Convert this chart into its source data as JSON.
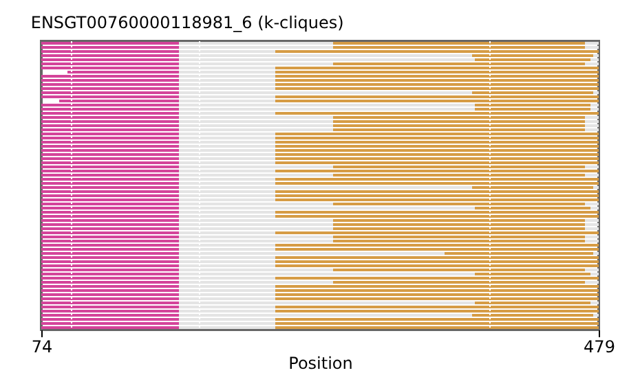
{
  "chart_data": {
    "type": "bar",
    "orientation": "horizontal",
    "title": "ENSGT00760000118981_6 (k-cliques)",
    "xlabel": "Position",
    "xlim": [
      74,
      479
    ],
    "xticks": [
      74,
      479
    ],
    "tick_labels": "x",
    "categories": [
      null,
      null,
      null,
      null,
      null,
      null,
      null,
      null,
      null,
      null,
      null,
      null,
      null,
      null,
      null,
      null,
      null,
      null,
      null,
      null,
      null,
      null,
      null,
      null,
      null,
      null,
      null,
      null,
      null,
      null,
      null,
      null,
      null,
      null,
      null,
      null,
      null,
      null,
      null,
      null,
      null,
      null,
      null,
      null,
      null,
      null,
      null,
      null,
      null,
      null,
      null,
      null,
      null,
      null,
      null,
      null,
      null,
      null,
      null,
      null,
      null,
      null,
      null,
      null,
      null,
      null,
      null,
      null,
      null,
      null
    ],
    "ref_lines": [
      {
        "axis": "x",
        "value": 96,
        "color": "#ffffff",
        "line_style": "dotted"
      },
      {
        "axis": "x",
        "value": 189,
        "color": "#ffffff",
        "line_style": "dotted"
      },
      {
        "axis": "x",
        "value": 400,
        "color": "#ffffff",
        "line_style": "dotted"
      }
    ],
    "series": [
      {
        "color": "#d4449a",
        "base": [
          74,
          74,
          74,
          74,
          74,
          74,
          74,
          93,
          74,
          74,
          74,
          74,
          74,
          74,
          87,
          74,
          74,
          74,
          74,
          74,
          74,
          74,
          74,
          74,
          74,
          74,
          74,
          74,
          74,
          74,
          74,
          74,
          74,
          74,
          74,
          74,
          74,
          74,
          74,
          74,
          74,
          74,
          74,
          74,
          74,
          74,
          74,
          74,
          74,
          74,
          74,
          74,
          74,
          74,
          74,
          74,
          74,
          74,
          74,
          74,
          74,
          74,
          74,
          74,
          74,
          74,
          74,
          74,
          74,
          74
        ],
        "values": [
          100,
          100,
          100,
          100,
          100,
          100,
          100,
          81,
          100,
          100,
          100,
          100,
          100,
          100,
          87,
          100,
          100,
          100,
          100,
          100,
          100,
          100,
          100,
          100,
          100,
          100,
          100,
          100,
          100,
          100,
          100,
          100,
          100,
          100,
          100,
          100,
          100,
          100,
          100,
          100,
          100,
          100,
          100,
          100,
          100,
          100,
          100,
          100,
          100,
          100,
          100,
          100,
          100,
          100,
          100,
          100,
          100,
          100,
          100,
          100,
          100,
          100,
          100,
          100,
          100,
          100,
          100,
          100,
          100,
          100
        ]
      },
      {
        "color": "#e4e4e4",
        "base": [
          174,
          174,
          174,
          174,
          174,
          174,
          174,
          174,
          174,
          174,
          174,
          174,
          174,
          174,
          174,
          174,
          174,
          174,
          174,
          174,
          174,
          174,
          174,
          174,
          174,
          174,
          174,
          174,
          174,
          174,
          174,
          174,
          174,
          174,
          174,
          174,
          174,
          174,
          174,
          174,
          174,
          174,
          174,
          174,
          174,
          174,
          174,
          174,
          174,
          174,
          174,
          174,
          174,
          174,
          174,
          174,
          174,
          174,
          174,
          174,
          174,
          174,
          174,
          174,
          174,
          174,
          174,
          174,
          174,
          174
        ],
        "values": [
          112,
          112,
          70,
          213,
          215,
          112,
          70,
          70,
          70,
          70,
          70,
          70,
          213,
          70,
          70,
          215,
          215,
          70,
          112,
          112,
          112,
          112,
          70,
          70,
          70,
          70,
          70,
          70,
          70,
          70,
          112,
          70,
          112,
          70,
          70,
          213,
          70,
          70,
          70,
          112,
          215,
          70,
          70,
          112,
          112,
          112,
          70,
          112,
          112,
          70,
          70,
          193,
          70,
          70,
          70,
          112,
          215,
          70,
          112,
          70,
          70,
          70,
          70,
          215,
          70,
          70,
          213,
          70,
          70,
          70
        ]
      },
      {
        "color": "#d69c45",
        "base": [
          286,
          286,
          244,
          387,
          389,
          286,
          244,
          244,
          244,
          244,
          244,
          244,
          387,
          244,
          244,
          389,
          389,
          244,
          286,
          286,
          286,
          286,
          244,
          244,
          244,
          244,
          244,
          244,
          244,
          244,
          286,
          244,
          286,
          244,
          244,
          387,
          244,
          244,
          244,
          286,
          389,
          244,
          244,
          286,
          286,
          286,
          244,
          286,
          286,
          244,
          244,
          367,
          244,
          244,
          244,
          286,
          389,
          244,
          286,
          244,
          244,
          244,
          244,
          389,
          244,
          244,
          387,
          244,
          244,
          244
        ],
        "values": [
          183,
          183,
          235,
          88,
          84,
          183,
          235,
          235,
          235,
          235,
          235,
          235,
          88,
          235,
          235,
          84,
          84,
          235,
          183,
          183,
          183,
          183,
          235,
          235,
          235,
          235,
          235,
          235,
          235,
          235,
          183,
          235,
          183,
          235,
          235,
          88,
          235,
          235,
          235,
          183,
          84,
          235,
          235,
          183,
          183,
          183,
          235,
          183,
          183,
          235,
          235,
          108,
          235,
          235,
          235,
          183,
          84,
          235,
          183,
          235,
          235,
          235,
          235,
          84,
          235,
          235,
          88,
          235,
          235,
          235
        ]
      },
      {
        "color": "#e4e4e4",
        "base": [
          469,
          469,
          null,
          475,
          473,
          469,
          null,
          null,
          null,
          null,
          null,
          null,
          475,
          null,
          null,
          473,
          473,
          null,
          469,
          469,
          469,
          469,
          null,
          null,
          null,
          null,
          null,
          null,
          null,
          null,
          469,
          null,
          469,
          null,
          null,
          475,
          null,
          null,
          null,
          469,
          473,
          null,
          null,
          469,
          469,
          469,
          null,
          469,
          469,
          null,
          null,
          475,
          null,
          null,
          null,
          469,
          473,
          null,
          469,
          null,
          null,
          null,
          null,
          473,
          null,
          null,
          475,
          null,
          null,
          null
        ],
        "values": [
          10,
          10,
          null,
          4,
          6,
          10,
          null,
          null,
          null,
          null,
          null,
          null,
          4,
          null,
          null,
          6,
          6,
          null,
          10,
          10,
          10,
          10,
          null,
          null,
          null,
          null,
          null,
          null,
          null,
          null,
          10,
          null,
          10,
          null,
          null,
          4,
          null,
          null,
          null,
          10,
          6,
          null,
          null,
          10,
          10,
          10,
          null,
          10,
          10,
          null,
          null,
          4,
          null,
          null,
          null,
          10,
          6,
          null,
          10,
          null,
          null,
          null,
          null,
          6,
          null,
          null,
          4,
          null,
          null,
          null
        ]
      }
    ]
  }
}
